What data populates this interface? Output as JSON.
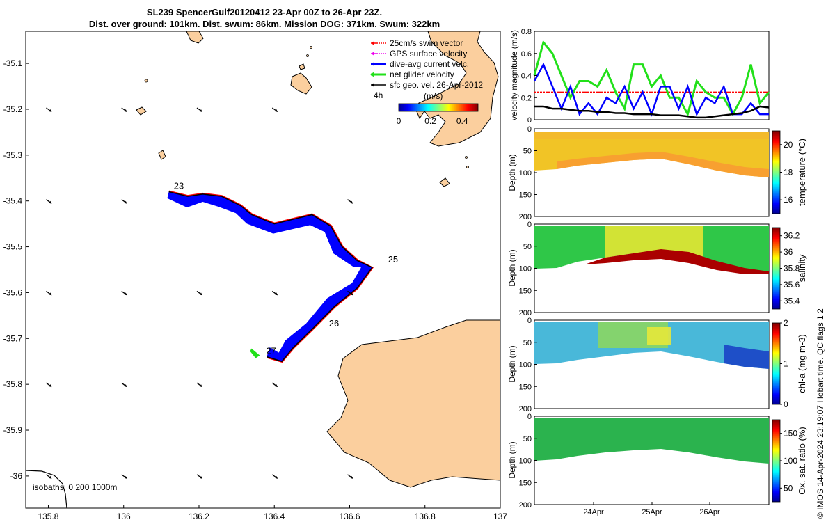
{
  "title_line1": "SL239 SpencerGulf20120412 23-Apr 00Z to 26-Apr 23Z.",
  "title_line2": "Dist. over ground: 101km. Dist. swum: 86km. Mission DOG: 371km. Swum: 322km",
  "copyright": "© IMOS 14-Apr-2024 23:19:07 Hobart time. QC flags 1  2",
  "colors": {
    "land": "#fbcf9e",
    "track_red": "#ff0000",
    "track_blue": "#0000ff",
    "net_green": "#22e01a",
    "gps_magenta": "#ee00ee",
    "geo_black": "#000000"
  },
  "chart_data": [
    {
      "type": "map",
      "xlim": [
        135.74,
        137.0
      ],
      "ylim": [
        -36.07,
        -35.03
      ],
      "x_ticks": [
        135.8,
        136,
        136.2,
        136.4,
        136.6,
        136.8,
        137
      ],
      "x_tick_labels": [
        "135.8",
        "136",
        "136.2",
        "136.4",
        "136.6",
        "136.8",
        "137"
      ],
      "y_ticks": [
        -35.1,
        -35.2,
        -35.3,
        -35.4,
        -35.5,
        -35.6,
        -35.7,
        -35.8,
        -35.9,
        -36
      ],
      "y_tick_labels": [
        "-35.1",
        "-35.2",
        "-35.3",
        "-35.4",
        "-35.5",
        "-35.6",
        "-35.7",
        "-35.8",
        "-35.9",
        "-36"
      ],
      "legend": [
        {
          "label": "25cm/s swim vector",
          "color": "#ff0000"
        },
        {
          "label": "GPS surface velocity",
          "color": "#ee00ee"
        },
        {
          "label": "dive-avg current velc.",
          "color": "#0000ff"
        },
        {
          "label": "net glider velocity",
          "color": "#22e01a"
        },
        {
          "label": "sfc geo. vel. 26-Apr-2012",
          "color": "#000000"
        }
      ],
      "legend_position": "top-right",
      "scale_label": "4h",
      "colorbar_label": "(m/s)",
      "colorbar_ticks": [
        "0",
        "0.2",
        "0.4"
      ],
      "colorbar_range": [
        0,
        0.5
      ],
      "isobaths_label": "isobaths: 0   200  1000m",
      "track": [
        {
          "lon": 136.12,
          "lat": -35.38
        },
        {
          "lon": 136.17,
          "lat": -35.39
        },
        {
          "lon": 136.21,
          "lat": -35.385
        },
        {
          "lon": 136.26,
          "lat": -35.39
        },
        {
          "lon": 136.31,
          "lat": -35.41
        },
        {
          "lon": 136.34,
          "lat": -35.43
        },
        {
          "lon": 136.4,
          "lat": -35.45
        },
        {
          "lon": 136.45,
          "lat": -35.44
        },
        {
          "lon": 136.5,
          "lat": -35.43
        },
        {
          "lon": 136.55,
          "lat": -35.455
        },
        {
          "lon": 136.58,
          "lat": -35.5
        },
        {
          "lon": 136.62,
          "lat": -35.53
        },
        {
          "lon": 136.66,
          "lat": -35.545
        },
        {
          "lon": 136.62,
          "lat": -35.59
        },
        {
          "lon": 136.56,
          "lat": -35.63
        },
        {
          "lon": 136.5,
          "lat": -35.68
        },
        {
          "lon": 136.45,
          "lat": -35.72
        },
        {
          "lon": 136.42,
          "lat": -35.75
        },
        {
          "lon": 136.38,
          "lat": -35.74
        }
      ],
      "day_labels": [
        {
          "label": "23",
          "lon": 136.133,
          "lat": -35.38
        },
        {
          "label": "25",
          "lon": 136.702,
          "lat": -35.54
        },
        {
          "label": "26",
          "lon": 136.545,
          "lat": -35.68
        },
        {
          "label": "27",
          "lon": 136.378,
          "lat": -35.74
        }
      ],
      "geo_vectors": [
        {
          "lon": 135.8,
          "lat": -35.2
        },
        {
          "lon": 136.0,
          "lat": -35.2
        },
        {
          "lon": 136.2,
          "lat": -35.2
        },
        {
          "lon": 136.4,
          "lat": -35.2
        },
        {
          "lon": 135.8,
          "lat": -35.4
        },
        {
          "lon": 136.0,
          "lat": -35.4
        },
        {
          "lon": 136.6,
          "lat": -35.4
        },
        {
          "lon": 135.8,
          "lat": -35.6
        },
        {
          "lon": 136.0,
          "lat": -35.6
        },
        {
          "lon": 136.2,
          "lat": -35.6
        },
        {
          "lon": 136.4,
          "lat": -35.6
        },
        {
          "lon": 136.6,
          "lat": -35.6
        },
        {
          "lon": 135.8,
          "lat": -35.8
        },
        {
          "lon": 136.0,
          "lat": -35.8
        },
        {
          "lon": 136.2,
          "lat": -35.8
        },
        {
          "lon": 136.4,
          "lat": -35.8
        },
        {
          "lon": 135.8,
          "lat": -36.0
        },
        {
          "lon": 136.0,
          "lat": -36.0
        },
        {
          "lon": 136.2,
          "lat": -36.0
        },
        {
          "lon": 136.4,
          "lat": -36.0
        },
        {
          "lon": 136.6,
          "lat": -36.0
        }
      ]
    },
    {
      "type": "line",
      "ylabel": "velocity magnitude (m/s)",
      "ylim": [
        0,
        0.8
      ],
      "y_ticks": [
        "0",
        "0.2",
        "0.4",
        "0.6",
        "0.8"
      ],
      "series": [
        {
          "name": "swim speed",
          "color": "#ff0000",
          "values": [
            0.25,
            0.25,
            0.25,
            0.25,
            0.25,
            0.25,
            0.25,
            0.25,
            0.25,
            0.25,
            0.25,
            0.25,
            0.25,
            0.25,
            0.25,
            0.25,
            0.25,
            0.25,
            0.25,
            0.25,
            0.25,
            0.25,
            0.25,
            0.25,
            0.25,
            0.25,
            0.25
          ]
        },
        {
          "name": "net glider velocity",
          "color": "#22e01a",
          "values": [
            0.4,
            0.7,
            0.6,
            0.4,
            0.2,
            0.35,
            0.35,
            0.3,
            0.45,
            0.25,
            0.1,
            0.5,
            0.5,
            0.3,
            0.4,
            0.2,
            0.2,
            0.05,
            0.35,
            0.25,
            0.2,
            0.2,
            0.05,
            0.2,
            0.5,
            0.15,
            0.25
          ]
        },
        {
          "name": "dive-avg current",
          "color": "#0000ff",
          "values": [
            0.35,
            0.5,
            0.3,
            0.1,
            0.3,
            0.05,
            0.15,
            0.05,
            0.2,
            0.15,
            0.3,
            0.1,
            0.25,
            0.05,
            0.3,
            0.3,
            0.1,
            0.3,
            0.05,
            0.2,
            0.15,
            0.3,
            0.05,
            0.05,
            0.15,
            0.05,
            0.05
          ]
        },
        {
          "name": "sfc geo. vel.",
          "color": "#000000",
          "values": [
            0.12,
            0.12,
            0.1,
            0.1,
            0.09,
            0.08,
            0.08,
            0.07,
            0.07,
            0.06,
            0.06,
            0.05,
            0.05,
            0.05,
            0.04,
            0.04,
            0.04,
            0.03,
            0.02,
            0.02,
            0.03,
            0.04,
            0.05,
            0.06,
            0.08,
            0.12,
            0.11
          ]
        }
      ]
    },
    {
      "type": "heatmap",
      "ylabel": "Depth (m)",
      "ylim": [
        200,
        0
      ],
      "y_ticks": [
        "0",
        "50",
        "100",
        "150",
        "200"
      ],
      "cbar_label": "temperature (°C)",
      "cbar_ticks": [
        "16",
        "18",
        "20"
      ],
      "cbar_range": [
        15,
        21
      ]
    },
    {
      "type": "heatmap",
      "ylabel": "Depth (m)",
      "ylim": [
        200,
        0
      ],
      "y_ticks": [
        "0",
        "50",
        "100",
        "150",
        "200"
      ],
      "cbar_label": "salinity",
      "cbar_ticks": [
        "35.4",
        "35.6",
        "35.8",
        "36",
        "36.2"
      ],
      "cbar_range": [
        35.3,
        36.3
      ]
    },
    {
      "type": "heatmap",
      "ylabel": "Depth (m)",
      "ylim": [
        200,
        0
      ],
      "y_ticks": [
        "0",
        "50",
        "100",
        "150",
        "200"
      ],
      "cbar_label": "chl-a (mg m-3)",
      "cbar_ticks": [
        "0",
        "1",
        "2"
      ],
      "cbar_range": [
        0,
        2
      ]
    },
    {
      "type": "heatmap",
      "ylabel": "Depth (m)",
      "ylim": [
        200,
        0
      ],
      "y_ticks": [
        "0",
        "50",
        "100",
        "150",
        "200"
      ],
      "cbar_label": "Ox. sat. ratio (%)",
      "cbar_ticks": [
        "50",
        "100",
        "150"
      ],
      "cbar_range": [
        25,
        175
      ],
      "x_tick_labels": [
        "24Apr",
        "25Apr",
        "26Apr"
      ]
    }
  ]
}
